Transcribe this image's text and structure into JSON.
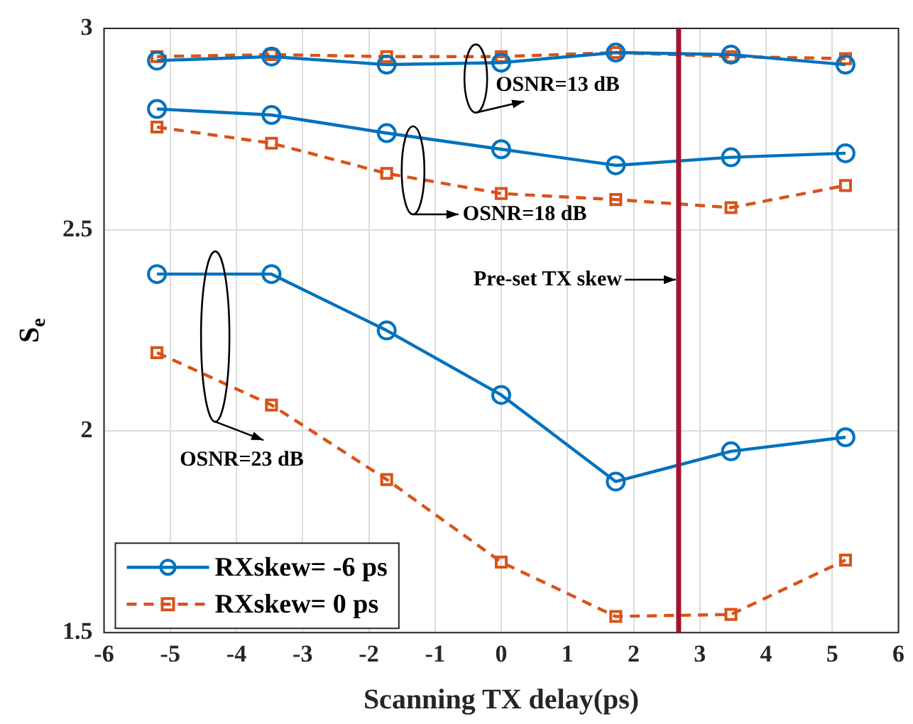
{
  "chart_data": {
    "type": "line",
    "xlabel": "Scanning TX delay(ps)",
    "ylabel": "S$_{e}$",
    "x": [
      -5.2,
      -3.47,
      -1.73,
      0,
      1.73,
      3.47,
      5.2
    ],
    "series": [
      {
        "name": "RXskew= -6 ps",
        "color": "#0072bd",
        "marker": "circle",
        "line_style": "solid",
        "values": [
          2.92,
          2.93,
          2.91,
          2.915,
          2.94,
          2.935,
          2.91
        ]
      },
      {
        "name": "RXskew= 0 ps",
        "color": "#d95319",
        "marker": "square",
        "line_style": "dashed",
        "values": [
          2.93,
          2.935,
          2.93,
          2.93,
          2.94,
          2.93,
          2.925
        ]
      },
      {
        "color": "#0072bd",
        "marker": "circle",
        "line_style": "solid",
        "values": [
          2.8,
          2.785,
          2.74,
          2.7,
          2.66,
          2.68,
          2.69
        ]
      },
      {
        "color": "#d95319",
        "marker": "square",
        "line_style": "dashed",
        "values": [
          2.755,
          2.715,
          2.64,
          2.59,
          2.575,
          2.555,
          2.61
        ]
      },
      {
        "color": "#0072bd",
        "marker": "circle",
        "line_style": "solid",
        "values": [
          2.39,
          2.39,
          2.25,
          2.09,
          1.875,
          1.95,
          1.985
        ]
      },
      {
        "color": "#d95319",
        "marker": "square",
        "line_style": "dashed",
        "values": [
          2.195,
          2.065,
          1.88,
          1.675,
          1.54,
          1.545,
          1.68
        ]
      }
    ],
    "xlim": [
      -6,
      6
    ],
    "xticks": [
      -6,
      -5,
      -4,
      -3,
      -2,
      -1,
      0,
      1,
      2,
      3,
      4,
      5,
      6
    ],
    "ylim": [
      1.5,
      3
    ],
    "yticks": [
      1.5,
      2,
      2.5,
      3
    ],
    "grid": true,
    "legend": "bottom left",
    "ref_lines": [
      {
        "axis": "x",
        "value": 2.68,
        "label": "Pre-set TX skew",
        "color": "#a2142f"
      }
    ],
    "annotations": [
      "OSNR=13 dB",
      "OSNR=18 dB",
      "OSNR=23 dB"
    ]
  }
}
